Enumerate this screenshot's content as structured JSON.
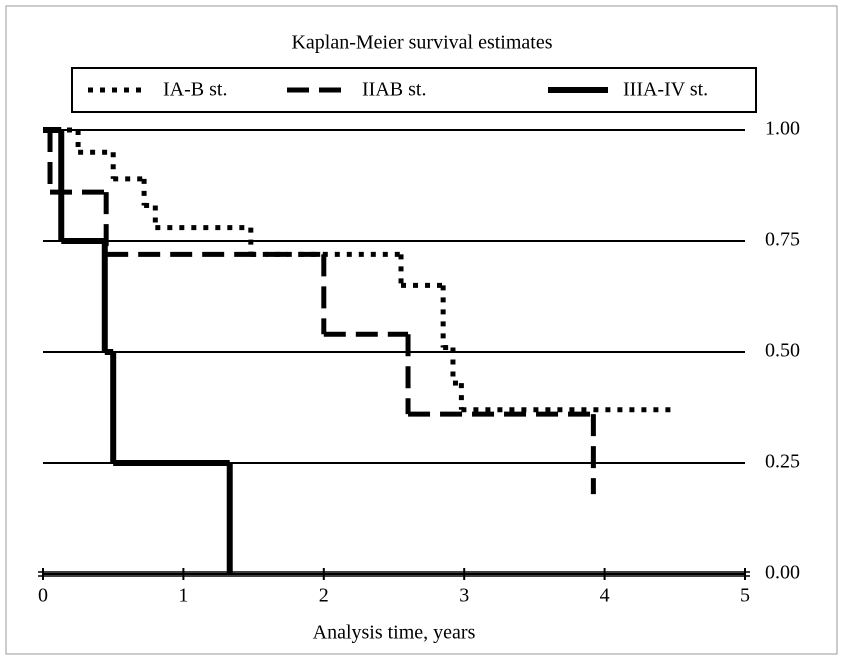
{
  "chart_data": {
    "type": "step",
    "title": "Kaplan-Meier survival estimates",
    "x_label": "Analysis time, years",
    "xlim": [
      0,
      5
    ],
    "xticks": [
      0,
      1,
      2,
      3,
      4,
      5
    ],
    "ylim": [
      0,
      1
    ],
    "yticks": [
      {
        "value": 0,
        "label": "0.00"
      },
      {
        "value": 0.25,
        "label": "0.25"
      },
      {
        "value": 0.5,
        "label": "0.50"
      },
      {
        "value": 0.75,
        "label": "0.75"
      },
      {
        "value": 1,
        "label": "1.00"
      }
    ],
    "grid": true,
    "y_axis_side": "right",
    "legend": "top",
    "series": [
      {
        "name": "IA-B st.",
        "color": "#000000",
        "style": "dotted",
        "x": [
          0,
          0.25,
          0.5,
          0.72,
          0.8,
          1.48,
          2.55,
          2.85,
          2.92,
          2.98,
          4.5
        ],
        "values": [
          1,
          0.95,
          0.89,
          0.83,
          0.78,
          0.72,
          0.65,
          0.51,
          0.43,
          0.37,
          0.37
        ]
      },
      {
        "name": "IIAB st.",
        "color": "#000000",
        "style": "dashed",
        "x": [
          0,
          0.05,
          0.45,
          2.0,
          2.6,
          3.92
        ],
        "values": [
          1,
          0.86,
          0.72,
          0.54,
          0.36,
          0.18
        ]
      },
      {
        "name": "IIIA-IV st.",
        "color": "#000000",
        "style": "solid",
        "x": [
          0,
          0.13,
          0.44,
          0.5,
          1.33
        ],
        "values": [
          1,
          0.75,
          0.5,
          0.25,
          0
        ]
      }
    ]
  }
}
